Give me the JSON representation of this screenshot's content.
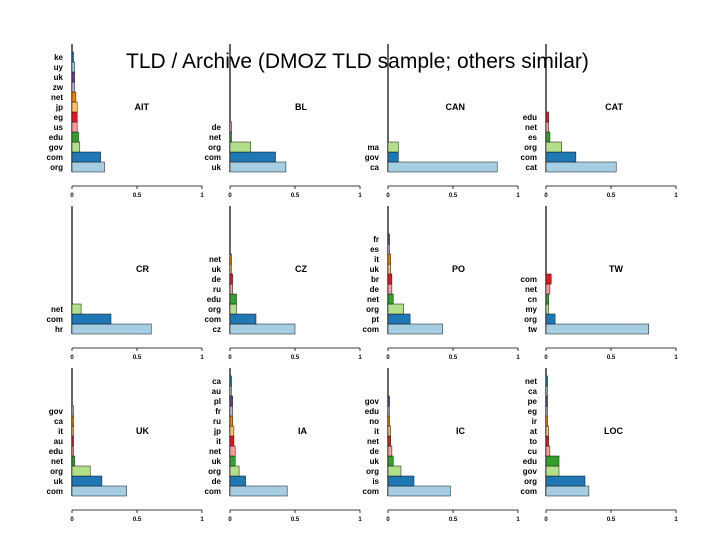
{
  "title": "TLD / Archive (DMOZ TLD sample; others similar)",
  "colors": {
    "light_blue": "#a6cee3",
    "dark_blue": "#1f78b4",
    "light_green": "#b2df8a",
    "dark_green": "#33a02c",
    "pink": "#fb9a99",
    "red": "#e31a1c",
    "light_orange": "#fdbf6f",
    "orange": "#ff7f00",
    "lavender": "#cab2d6",
    "purple": "#6a3d9a",
    "axis": "#000000"
  },
  "chart_data": [
    {
      "type": "bar",
      "orientation": "horizontal",
      "title": "AIT",
      "xlim": [
        0,
        1
      ],
      "xticks": [
        "0",
        "0.5",
        "1"
      ],
      "categories": [
        "org",
        "com",
        "gov",
        "edu",
        "us",
        "eg",
        "jp",
        "net",
        "zw",
        "uk",
        "uy",
        "ke"
      ],
      "values": [
        0.25,
        0.22,
        0.06,
        0.05,
        0.04,
        0.04,
        0.04,
        0.03,
        0.02,
        0.02,
        0.02,
        0.01
      ]
    },
    {
      "type": "bar",
      "orientation": "horizontal",
      "title": "BL",
      "xlim": [
        0,
        1
      ],
      "xticks": [
        "0",
        "0.5",
        "1"
      ],
      "categories": [
        "uk",
        "com",
        "org",
        "net",
        "de"
      ],
      "values": [
        0.43,
        0.35,
        0.16,
        0.01,
        0.01
      ]
    },
    {
      "type": "bar",
      "orientation": "horizontal",
      "title": "CAN",
      "xlim": [
        0,
        1
      ],
      "xticks": [
        "0",
        "0.5",
        "1"
      ],
      "categories": [
        "ca",
        "gov",
        "ma"
      ],
      "values": [
        0.84,
        0.08,
        0.08
      ]
    },
    {
      "type": "bar",
      "orientation": "horizontal",
      "title": "CAT",
      "xlim": [
        0,
        1
      ],
      "xticks": [
        "0",
        "0.5",
        "1"
      ],
      "categories": [
        "cat",
        "com",
        "org",
        "es",
        "net",
        "edu"
      ],
      "values": [
        0.54,
        0.23,
        0.12,
        0.03,
        0.02,
        0.02
      ]
    },
    {
      "type": "bar",
      "orientation": "horizontal",
      "title": "CR",
      "xlim": [
        0,
        1
      ],
      "xticks": [
        "0",
        "0.5",
        "1"
      ],
      "categories": [
        "hr",
        "com",
        "net"
      ],
      "values": [
        0.61,
        0.3,
        0.07
      ]
    },
    {
      "type": "bar",
      "orientation": "horizontal",
      "title": "CZ",
      "xlim": [
        0,
        1
      ],
      "xticks": [
        "0",
        "0.5",
        "1"
      ],
      "categories": [
        "cz",
        "com",
        "org",
        "edu",
        "ru",
        "de",
        "uk",
        "net"
      ],
      "values": [
        0.5,
        0.2,
        0.05,
        0.05,
        0.02,
        0.02,
        0.01,
        0.01
      ]
    },
    {
      "type": "bar",
      "orientation": "horizontal",
      "title": "PO",
      "xlim": [
        0,
        1
      ],
      "xticks": [
        "0",
        "0.5",
        "1"
      ],
      "categories": [
        "com",
        "pt",
        "org",
        "net",
        "de",
        "br",
        "uk",
        "it",
        "es",
        "fr"
      ],
      "values": [
        0.42,
        0.17,
        0.12,
        0.04,
        0.03,
        0.03,
        0.02,
        0.02,
        0.01,
        0.01
      ]
    },
    {
      "type": "bar",
      "orientation": "horizontal",
      "title": "TW",
      "xlim": [
        0,
        1
      ],
      "xticks": [
        "0",
        "0.5",
        "1"
      ],
      "categories": [
        "tw",
        "org",
        "my",
        "cn",
        "net",
        "com"
      ],
      "values": [
        0.79,
        0.07,
        0.02,
        0.02,
        0.03,
        0.04
      ]
    },
    {
      "type": "bar",
      "orientation": "horizontal",
      "title": "UK",
      "xlim": [
        0,
        1
      ],
      "xticks": [
        "0",
        "0.5",
        "1"
      ],
      "categories": [
        "com",
        "uk",
        "org",
        "net",
        "edu",
        "au",
        "it",
        "ca",
        "gov"
      ],
      "values": [
        0.42,
        0.23,
        0.14,
        0.02,
        0.01,
        0.01,
        0.01,
        0.01,
        0.01
      ]
    },
    {
      "type": "bar",
      "orientation": "horizontal",
      "title": "IA",
      "xlim": [
        0,
        1
      ],
      "xticks": [
        "0",
        "0.5",
        "1"
      ],
      "categories": [
        "com",
        "de",
        "org",
        "uk",
        "net",
        "it",
        "jp",
        "ru",
        "fr",
        "pl",
        "au",
        "ca"
      ],
      "values": [
        0.44,
        0.12,
        0.07,
        0.04,
        0.04,
        0.03,
        0.03,
        0.02,
        0.02,
        0.02,
        0.01,
        0.01
      ]
    },
    {
      "type": "bar",
      "orientation": "horizontal",
      "title": "IC",
      "xlim": [
        0,
        1
      ],
      "xticks": [
        "0",
        "0.5",
        "1"
      ],
      "categories": [
        "com",
        "is",
        "org",
        "uk",
        "de",
        "net",
        "it",
        "no",
        "edu",
        "gov"
      ],
      "values": [
        0.48,
        0.2,
        0.1,
        0.04,
        0.03,
        0.02,
        0.02,
        0.01,
        0.01,
        0.01
      ]
    },
    {
      "type": "bar",
      "orientation": "horizontal",
      "title": "LOC",
      "xlim": [
        0,
        1
      ],
      "xticks": [
        "0",
        "0.5",
        "1"
      ],
      "categories": [
        "com",
        "org",
        "gov",
        "edu",
        "cu",
        "to",
        "at",
        "ir",
        "eg",
        "pe",
        "ca",
        "net"
      ],
      "values": [
        0.33,
        0.3,
        0.1,
        0.1,
        0.03,
        0.02,
        0.02,
        0.01,
        0.01,
        0.01,
        0.01,
        0.01
      ]
    }
  ]
}
